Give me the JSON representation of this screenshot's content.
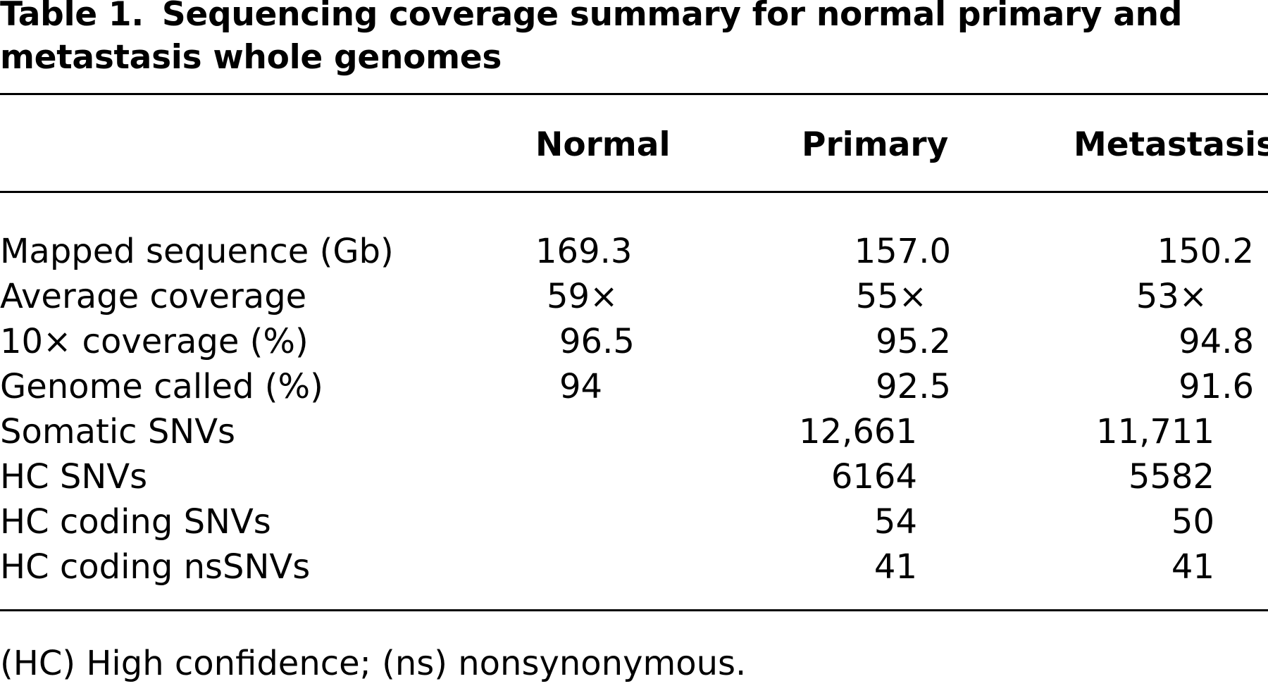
{
  "caption": {
    "label": "Table 1.",
    "text": "Sequencing coverage summary for normal primary and metastasis whole genomes"
  },
  "columns": [
    "Normal",
    "Primary",
    "Metastasis"
  ],
  "rows": [
    {
      "name": "Mapped sequence (Gb)",
      "normal": "169.3",
      "primary": "157.0",
      "metastasis": "150.2"
    },
    {
      "name": "Average coverage",
      "normal": "59×",
      "primary": "55×",
      "metastasis": "53×"
    },
    {
      "name": "10× coverage (%)",
      "normal": "96.5",
      "primary": "95.2",
      "metastasis": "94.8"
    },
    {
      "name": "Genome called (%)",
      "normal": "94",
      "primary": "92.5",
      "metastasis": "91.6"
    },
    {
      "name": "Somatic SNVs",
      "normal": "",
      "primary": "12,661",
      "metastasis": "11,711"
    },
    {
      "name": "HC SNVs",
      "normal": "",
      "primary": "6164",
      "metastasis": "5582"
    },
    {
      "name": "HC coding SNVs",
      "normal": "",
      "primary": "54",
      "metastasis": "50"
    },
    {
      "name": "HC coding nsSNVs",
      "normal": "",
      "primary": "41",
      "metastasis": "41"
    }
  ],
  "footnote": "(HC) High confidence; (ns) nonsynonymous."
}
